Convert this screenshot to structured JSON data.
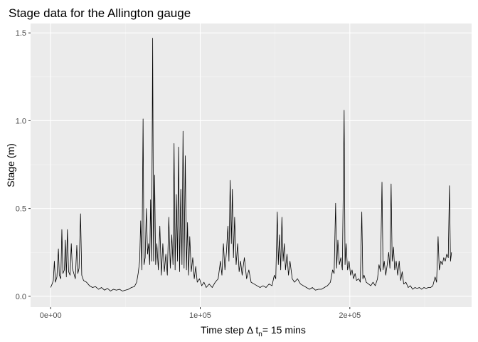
{
  "chart_data": {
    "type": "line",
    "title": "Stage data for the Allington gauge",
    "xlabel": {
      "prefix": "Time step Δ t",
      "subscript": "n",
      "suffix": "= 15 mins"
    },
    "ylabel": "Stage (m)",
    "xlim": [
      -13400,
      281400
    ],
    "ylim": [
      -0.0615,
      1.5535
    ],
    "x_ticks": [
      {
        "value": 0,
        "label": "0e+00"
      },
      {
        "value": 100000,
        "label": "1e+05"
      },
      {
        "value": 200000,
        "label": "2e+05"
      }
    ],
    "y_ticks": [
      {
        "value": 0.0,
        "label": "0.0"
      },
      {
        "value": 0.5,
        "label": "0.5"
      },
      {
        "value": 1.0,
        "label": "1.0"
      },
      {
        "value": 1.5,
        "label": "1.5"
      }
    ],
    "grid": true,
    "colors": {
      "panel_background": "#ebebeb",
      "grid_major": "#ffffff",
      "grid_minor": "#f5f5f5",
      "line": "#000000"
    },
    "series": [
      {
        "points": [
          [
            0,
            0.05
          ],
          [
            1000,
            0.07
          ],
          [
            1800,
            0.09
          ],
          [
            2500,
            0.2
          ],
          [
            3200,
            0.08
          ],
          [
            4200,
            0.11
          ],
          [
            5200,
            0.27
          ],
          [
            5800,
            0.12
          ],
          [
            6800,
            0.1
          ],
          [
            7500,
            0.38
          ],
          [
            8200,
            0.13
          ],
          [
            9200,
            0.15
          ],
          [
            9800,
            0.32
          ],
          [
            10500,
            0.11
          ],
          [
            11200,
            0.38
          ],
          [
            12000,
            0.14
          ],
          [
            13000,
            0.12
          ],
          [
            13800,
            0.3
          ],
          [
            14500,
            0.16
          ],
          [
            15500,
            0.13
          ],
          [
            16500,
            0.1
          ],
          [
            17500,
            0.29
          ],
          [
            18200,
            0.13
          ],
          [
            19000,
            0.16
          ],
          [
            20000,
            0.47
          ],
          [
            20800,
            0.12
          ],
          [
            22000,
            0.09
          ],
          [
            24000,
            0.08
          ],
          [
            26000,
            0.06
          ],
          [
            28000,
            0.05
          ],
          [
            30000,
            0.055
          ],
          [
            32000,
            0.04
          ],
          [
            34000,
            0.05
          ],
          [
            36000,
            0.035
          ],
          [
            38000,
            0.045
          ],
          [
            40000,
            0.03
          ],
          [
            42000,
            0.04
          ],
          [
            44000,
            0.035
          ],
          [
            46000,
            0.04
          ],
          [
            48000,
            0.03
          ],
          [
            50000,
            0.035
          ],
          [
            52000,
            0.04
          ],
          [
            54000,
            0.05
          ],
          [
            56000,
            0.055
          ],
          [
            57500,
            0.08
          ],
          [
            58500,
            0.13
          ],
          [
            59500,
            0.2
          ],
          [
            60200,
            0.43
          ],
          [
            61000,
            0.15
          ],
          [
            61800,
            1.01
          ],
          [
            62400,
            0.18
          ],
          [
            63200,
            0.22
          ],
          [
            64000,
            0.5
          ],
          [
            64800,
            0.24
          ],
          [
            65500,
            0.3
          ],
          [
            66200,
            0.18
          ],
          [
            66800,
            0.55
          ],
          [
            67500,
            0.2
          ],
          [
            68200,
            1.47
          ],
          [
            68800,
            0.2
          ],
          [
            69500,
            0.69
          ],
          [
            70200,
            0.18
          ],
          [
            71000,
            0.3
          ],
          [
            72000,
            0.15
          ],
          [
            73000,
            0.4
          ],
          [
            74000,
            0.12
          ],
          [
            75000,
            0.3
          ],
          [
            76000,
            0.14
          ],
          [
            77000,
            0.24
          ],
          [
            78000,
            0.12
          ],
          [
            79000,
            0.45
          ],
          [
            80000,
            0.16
          ],
          [
            81000,
            0.35
          ],
          [
            81800,
            0.18
          ],
          [
            82500,
            0.87
          ],
          [
            83200,
            0.15
          ],
          [
            84000,
            0.58
          ],
          [
            84800,
            0.2
          ],
          [
            85500,
            0.85
          ],
          [
            86200,
            0.14
          ],
          [
            87000,
            0.61
          ],
          [
            87800,
            0.18
          ],
          [
            88500,
            0.94
          ],
          [
            89200,
            0.16
          ],
          [
            90000,
            0.8
          ],
          [
            90800,
            0.15
          ],
          [
            91500,
            0.42
          ],
          [
            92200,
            0.12
          ],
          [
            93000,
            0.34
          ],
          [
            94000,
            0.14
          ],
          [
            95000,
            0.22
          ],
          [
            96000,
            0.1
          ],
          [
            97000,
            0.17
          ],
          [
            98000,
            0.08
          ],
          [
            99500,
            0.1
          ],
          [
            101000,
            0.06
          ],
          [
            102500,
            0.08
          ],
          [
            104000,
            0.05
          ],
          [
            106000,
            0.07
          ],
          [
            108000,
            0.05
          ],
          [
            110000,
            0.08
          ],
          [
            112000,
            0.1
          ],
          [
            113500,
            0.2
          ],
          [
            114500,
            0.12
          ],
          [
            115500,
            0.3
          ],
          [
            116500,
            0.15
          ],
          [
            117500,
            0.25
          ],
          [
            118500,
            0.4
          ],
          [
            119200,
            0.2
          ],
          [
            120000,
            0.66
          ],
          [
            120800,
            0.3
          ],
          [
            121500,
            0.61
          ],
          [
            122200,
            0.22
          ],
          [
            123000,
            0.45
          ],
          [
            124000,
            0.18
          ],
          [
            125000,
            0.3
          ],
          [
            126000,
            0.14
          ],
          [
            127000,
            0.2
          ],
          [
            128000,
            0.12
          ],
          [
            129500,
            0.22
          ],
          [
            131000,
            0.1
          ],
          [
            132500,
            0.15
          ],
          [
            134000,
            0.08
          ],
          [
            136000,
            0.07
          ],
          [
            138000,
            0.06
          ],
          [
            140000,
            0.05
          ],
          [
            142000,
            0.06
          ],
          [
            144000,
            0.05
          ],
          [
            146000,
            0.07
          ],
          [
            148000,
            0.06
          ],
          [
            149500,
            0.12
          ],
          [
            150500,
            0.1
          ],
          [
            151500,
            0.48
          ],
          [
            152200,
            0.18
          ],
          [
            153000,
            0.35
          ],
          [
            153800,
            0.15
          ],
          [
            154600,
            0.45
          ],
          [
            155400,
            0.2
          ],
          [
            156200,
            0.3
          ],
          [
            157000,
            0.15
          ],
          [
            158000,
            0.24
          ],
          [
            159000,
            0.12
          ],
          [
            160000,
            0.2
          ],
          [
            161500,
            0.1
          ],
          [
            163000,
            0.08
          ],
          [
            165000,
            0.1
          ],
          [
            167000,
            0.07
          ],
          [
            169000,
            0.06
          ],
          [
            171000,
            0.05
          ],
          [
            173000,
            0.04
          ],
          [
            175000,
            0.05
          ],
          [
            177000,
            0.035
          ],
          [
            179000,
            0.04
          ],
          [
            181000,
            0.04
          ],
          [
            183000,
            0.05
          ],
          [
            185000,
            0.06
          ],
          [
            187000,
            0.08
          ],
          [
            188500,
            0.15
          ],
          [
            189500,
            0.13
          ],
          [
            190500,
            0.53
          ],
          [
            191200,
            0.16
          ],
          [
            192000,
            0.32
          ],
          [
            193000,
            0.18
          ],
          [
            194000,
            0.22
          ],
          [
            195000,
            0.15
          ],
          [
            196200,
            1.06
          ],
          [
            196800,
            0.18
          ],
          [
            197500,
            0.3
          ],
          [
            198500,
            0.15
          ],
          [
            199500,
            0.2
          ],
          [
            200500,
            0.12
          ],
          [
            201500,
            0.15
          ],
          [
            202500,
            0.1
          ],
          [
            203500,
            0.13
          ],
          [
            204500,
            0.09
          ],
          [
            206000,
            0.1
          ],
          [
            207000,
            0.08
          ],
          [
            208000,
            0.48
          ],
          [
            208700,
            0.1
          ],
          [
            209500,
            0.12
          ],
          [
            211000,
            0.08
          ],
          [
            212500,
            0.07
          ],
          [
            214000,
            0.06
          ],
          [
            215500,
            0.08
          ],
          [
            217000,
            0.06
          ],
          [
            218500,
            0.1
          ],
          [
            219500,
            0.18
          ],
          [
            220500,
            0.14
          ],
          [
            221500,
            0.65
          ],
          [
            222200,
            0.15
          ],
          [
            223000,
            0.2
          ],
          [
            224000,
            0.12
          ],
          [
            225000,
            0.18
          ],
          [
            226000,
            0.25
          ],
          [
            226800,
            0.16
          ],
          [
            227600,
            0.64
          ],
          [
            228300,
            0.2
          ],
          [
            229200,
            0.28
          ],
          [
            230000,
            0.15
          ],
          [
            231000,
            0.2
          ],
          [
            232000,
            0.12
          ],
          [
            233000,
            0.2
          ],
          [
            234000,
            0.09
          ],
          [
            235000,
            0.14
          ],
          [
            236000,
            0.07
          ],
          [
            237500,
            0.08
          ],
          [
            239000,
            0.05
          ],
          [
            240500,
            0.06
          ],
          [
            242000,
            0.04
          ],
          [
            243500,
            0.05
          ],
          [
            245000,
            0.045
          ],
          [
            246500,
            0.05
          ],
          [
            248000,
            0.04
          ],
          [
            249500,
            0.05
          ],
          [
            251000,
            0.045
          ],
          [
            252500,
            0.05
          ],
          [
            254000,
            0.05
          ],
          [
            255500,
            0.06
          ],
          [
            257000,
            0.11
          ],
          [
            258000,
            0.08
          ],
          [
            259000,
            0.34
          ],
          [
            259800,
            0.15
          ],
          [
            260800,
            0.2
          ],
          [
            261800,
            0.18
          ],
          [
            262800,
            0.22
          ],
          [
            263800,
            0.2
          ],
          [
            264800,
            0.24
          ],
          [
            265800,
            0.22
          ],
          [
            266600,
            0.63
          ],
          [
            267300,
            0.2
          ],
          [
            268000,
            0.25
          ]
        ]
      }
    ]
  }
}
